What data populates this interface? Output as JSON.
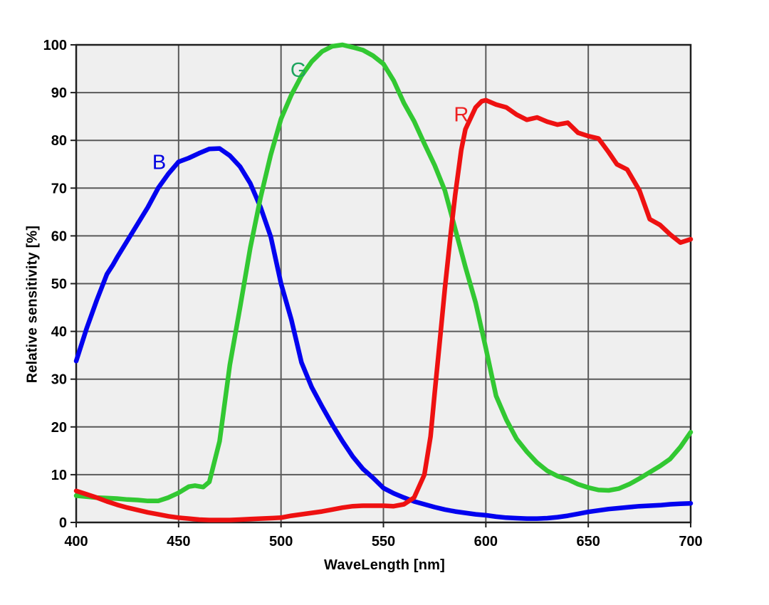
{
  "figure": {
    "background": "#ffffff",
    "plot_bg": "#efefef",
    "grid_color": "#595959",
    "frame_color": "#1f1f1f",
    "tick_color": "#1f1f1f",
    "text_color": "#000000"
  },
  "chart_data": {
    "type": "line",
    "title": "",
    "xlabel": "WaveLength [nm]",
    "ylabel": "Relative sensitivity [%]",
    "xlim": [
      400,
      700
    ],
    "ylim": [
      0,
      100
    ],
    "x_ticks": [
      400,
      450,
      500,
      550,
      600,
      650,
      700
    ],
    "y_ticks": [
      0,
      10,
      20,
      30,
      40,
      50,
      60,
      70,
      80,
      90,
      100
    ],
    "grid": true,
    "legend_position": "inline-curve-labels",
    "series": [
      {
        "name": "B",
        "color": "#0202ef",
        "label_color": "#0000e0",
        "label_at": {
          "x": 440.5,
          "y": 75.5
        },
        "points": [
          [
            400,
            33.8
          ],
          [
            405,
            40.5
          ],
          [
            410,
            46.5
          ],
          [
            415,
            52
          ],
          [
            418,
            54
          ],
          [
            420,
            55.5
          ],
          [
            425,
            59
          ],
          [
            430,
            62.5
          ],
          [
            435,
            66
          ],
          [
            440,
            70
          ],
          [
            445,
            73
          ],
          [
            450,
            75.5
          ],
          [
            455,
            76.3
          ],
          [
            460,
            77.3
          ],
          [
            465,
            78.2
          ],
          [
            470,
            78.3
          ],
          [
            475,
            76.8
          ],
          [
            480,
            74.5
          ],
          [
            485,
            71
          ],
          [
            490,
            66
          ],
          [
            495,
            59.8
          ],
          [
            500,
            50
          ],
          [
            505,
            42.5
          ],
          [
            510,
            33.5
          ],
          [
            515,
            28.3
          ],
          [
            520,
            24.3
          ],
          [
            525,
            20.5
          ],
          [
            530,
            17
          ],
          [
            535,
            13.8
          ],
          [
            540,
            11.2
          ],
          [
            545,
            9.3
          ],
          [
            550,
            7.2
          ],
          [
            555,
            6.1
          ],
          [
            560,
            5.2
          ],
          [
            565,
            4.4
          ],
          [
            570,
            3.8
          ],
          [
            575,
            3.2
          ],
          [
            580,
            2.7
          ],
          [
            585,
            2.3
          ],
          [
            590,
            2
          ],
          [
            595,
            1.7
          ],
          [
            600,
            1.5
          ],
          [
            605,
            1.2
          ],
          [
            610,
            1
          ],
          [
            615,
            0.9
          ],
          [
            620,
            0.8
          ],
          [
            625,
            0.8
          ],
          [
            630,
            0.9
          ],
          [
            635,
            1.1
          ],
          [
            640,
            1.4
          ],
          [
            645,
            1.8
          ],
          [
            650,
            2.2
          ],
          [
            655,
            2.5
          ],
          [
            660,
            2.8
          ],
          [
            665,
            3
          ],
          [
            670,
            3.2
          ],
          [
            675,
            3.4
          ],
          [
            680,
            3.5
          ],
          [
            685,
            3.6
          ],
          [
            690,
            3.8
          ],
          [
            695,
            3.9
          ],
          [
            700,
            4
          ]
        ]
      },
      {
        "name": "G",
        "color": "#32c832",
        "label_color": "#1da45e",
        "label_at": {
          "x": 508.5,
          "y": 94.8
        },
        "points": [
          [
            400,
            5.6
          ],
          [
            405,
            5.4
          ],
          [
            410,
            5.2
          ],
          [
            415,
            5.1
          ],
          [
            420,
            5
          ],
          [
            425,
            4.8
          ],
          [
            430,
            4.7
          ],
          [
            435,
            4.5
          ],
          [
            440,
            4.5
          ],
          [
            445,
            5.2
          ],
          [
            450,
            6.2
          ],
          [
            455,
            7.5
          ],
          [
            458,
            7.7
          ],
          [
            462,
            7.4
          ],
          [
            465,
            8.5
          ],
          [
            470,
            17
          ],
          [
            475,
            33
          ],
          [
            480,
            45
          ],
          [
            485,
            57.5
          ],
          [
            490,
            68
          ],
          [
            495,
            77
          ],
          [
            500,
            84.5
          ],
          [
            505,
            89.5
          ],
          [
            510,
            93.5
          ],
          [
            515,
            96.5
          ],
          [
            520,
            98.6
          ],
          [
            525,
            99.7
          ],
          [
            530,
            100
          ],
          [
            535,
            99.5
          ],
          [
            540,
            98.9
          ],
          [
            545,
            97.7
          ],
          [
            550,
            96
          ],
          [
            555,
            92.5
          ],
          [
            560,
            87.8
          ],
          [
            565,
            84
          ],
          [
            570,
            79.3
          ],
          [
            575,
            74.8
          ],
          [
            580,
            69.5
          ],
          [
            585,
            61.5
          ],
          [
            590,
            53.5
          ],
          [
            595,
            46
          ],
          [
            600,
            36.5
          ],
          [
            605,
            26.5
          ],
          [
            610,
            21.5
          ],
          [
            615,
            17.5
          ],
          [
            620,
            14.8
          ],
          [
            625,
            12.5
          ],
          [
            630,
            10.8
          ],
          [
            635,
            9.7
          ],
          [
            640,
            9
          ],
          [
            645,
            8
          ],
          [
            650,
            7.3
          ],
          [
            655,
            6.8
          ],
          [
            660,
            6.7
          ],
          [
            665,
            7.1
          ],
          [
            670,
            8
          ],
          [
            675,
            9.2
          ],
          [
            680,
            10.5
          ],
          [
            685,
            11.8
          ],
          [
            690,
            13.3
          ],
          [
            695,
            15.8
          ],
          [
            700,
            18.9
          ]
        ]
      },
      {
        "name": "R",
        "color": "#ee1111",
        "label_color": "#ee2222",
        "label_at": {
          "x": 588,
          "y": 85.5
        },
        "points": [
          [
            400,
            6.6
          ],
          [
            405,
            5.9
          ],
          [
            410,
            5.2
          ],
          [
            415,
            4.4
          ],
          [
            420,
            3.7
          ],
          [
            425,
            3.1
          ],
          [
            430,
            2.6
          ],
          [
            435,
            2.1
          ],
          [
            440,
            1.7
          ],
          [
            445,
            1.3
          ],
          [
            450,
            1
          ],
          [
            455,
            0.8
          ],
          [
            460,
            0.6
          ],
          [
            465,
            0.5
          ],
          [
            470,
            0.5
          ],
          [
            475,
            0.5
          ],
          [
            480,
            0.6
          ],
          [
            485,
            0.7
          ],
          [
            490,
            0.8
          ],
          [
            495,
            0.9
          ],
          [
            500,
            1
          ],
          [
            505,
            1.4
          ],
          [
            510,
            1.7
          ],
          [
            515,
            2
          ],
          [
            520,
            2.3
          ],
          [
            525,
            2.7
          ],
          [
            530,
            3.1
          ],
          [
            535,
            3.4
          ],
          [
            540,
            3.5
          ],
          [
            545,
            3.5
          ],
          [
            550,
            3.5
          ],
          [
            555,
            3.4
          ],
          [
            560,
            3.8
          ],
          [
            565,
            5.2
          ],
          [
            570,
            10
          ],
          [
            573,
            18
          ],
          [
            575,
            27
          ],
          [
            578,
            40
          ],
          [
            580,
            49
          ],
          [
            583,
            61
          ],
          [
            585,
            68.5
          ],
          [
            588,
            78
          ],
          [
            590,
            82.3
          ],
          [
            595,
            86.9
          ],
          [
            598,
            88.2
          ],
          [
            600,
            88.4
          ],
          [
            605,
            87.5
          ],
          [
            610,
            86.9
          ],
          [
            615,
            85.4
          ],
          [
            620,
            84.3
          ],
          [
            625,
            84.8
          ],
          [
            630,
            83.9
          ],
          [
            635,
            83.3
          ],
          [
            640,
            83.7
          ],
          [
            645,
            81.6
          ],
          [
            650,
            80.9
          ],
          [
            655,
            80.4
          ],
          [
            660,
            77.5
          ],
          [
            664,
            75
          ],
          [
            669,
            73.9
          ],
          [
            675,
            69.5
          ],
          [
            680,
            63.5
          ],
          [
            685,
            62.3
          ],
          [
            690,
            60.3
          ],
          [
            695,
            58.6
          ],
          [
            700,
            59.3
          ]
        ]
      }
    ]
  }
}
